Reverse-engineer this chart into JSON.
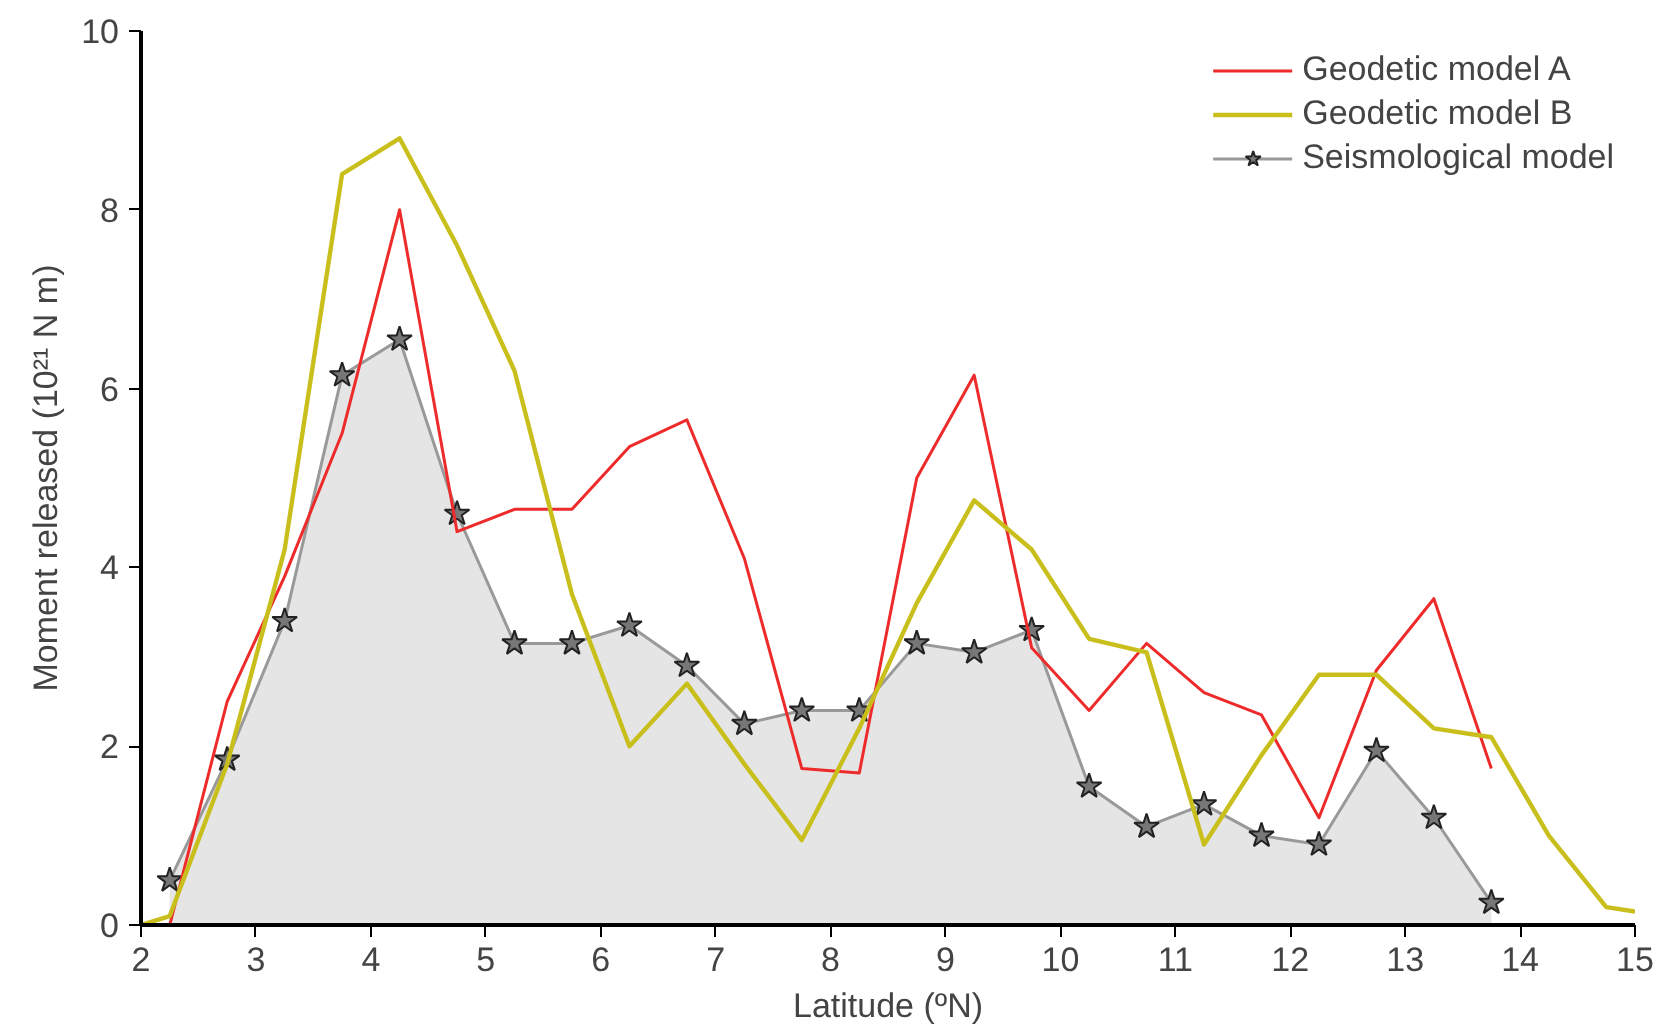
{
  "chart_data": {
    "type": "line",
    "xlabel": "Latitude (ºN)",
    "ylabel": "Moment released (10²¹ N m)",
    "xlim": [
      2,
      15
    ],
    "xticks": [
      2,
      3,
      4,
      5,
      6,
      7,
      8,
      9,
      10,
      11,
      12,
      13,
      14,
      15
    ],
    "ylim": [
      0,
      10
    ],
    "yticks": [
      0,
      2,
      4,
      6,
      8,
      10
    ],
    "grid": false,
    "legend": "top right",
    "series": [
      {
        "name": "Seismological model",
        "type": "area",
        "color": "#999999",
        "marker": "star",
        "x": [
          2.25,
          2.75,
          3.25,
          3.75,
          4.25,
          4.75,
          5.25,
          5.75,
          6.25,
          6.75,
          7.25,
          7.75,
          8.25,
          8.75,
          9.25,
          9.75,
          10.25,
          10.75,
          11.25,
          11.75,
          12.25,
          12.75,
          13.25,
          13.75
        ],
        "values": [
          0.5,
          1.85,
          3.4,
          6.15,
          6.55,
          4.6,
          3.15,
          3.15,
          3.35,
          2.9,
          2.25,
          2.4,
          2.4,
          3.15,
          3.05,
          3.3,
          1.55,
          1.1,
          1.35,
          1.0,
          0.9,
          1.95,
          1.2,
          0.25
        ]
      },
      {
        "name": "Geodetic model A",
        "color": "#ee2b2b",
        "x": [
          2.25,
          2.75,
          3.25,
          3.75,
          4.25,
          4.75,
          5.25,
          5.75,
          6.25,
          6.75,
          7.25,
          7.75,
          8.25,
          8.75,
          9.25,
          9.75,
          10.25,
          10.75,
          11.25,
          11.75,
          12.25,
          12.75,
          13.25,
          13.75
        ],
        "values": [
          0.0,
          2.5,
          3.9,
          5.5,
          8.0,
          4.4,
          4.65,
          4.65,
          5.35,
          5.65,
          4.1,
          1.75,
          1.7,
          5.0,
          6.15,
          3.1,
          2.4,
          3.15,
          2.6,
          2.35,
          1.2,
          2.85,
          3.65,
          1.75
        ]
      },
      {
        "name": "Geodetic model B",
        "color": "#c9bf1c",
        "x": [
          2,
          2.25,
          2.75,
          3.25,
          3.75,
          4.25,
          4.75,
          5.25,
          5.75,
          6.25,
          6.75,
          7.25,
          7.75,
          8.25,
          8.75,
          9.25,
          9.75,
          10.25,
          10.75,
          11.25,
          11.75,
          12.25,
          12.75,
          13.25,
          13.75,
          14.25,
          14.75,
          15
        ],
        "values": [
          0.0,
          0.1,
          1.8,
          4.2,
          8.4,
          8.8,
          7.6,
          6.2,
          3.7,
          2.0,
          2.7,
          1.8,
          0.95,
          2.2,
          3.6,
          4.75,
          4.2,
          3.2,
          3.05,
          0.9,
          1.9,
          2.8,
          2.8,
          2.2,
          2.1,
          1.0,
          0.2,
          0.15
        ]
      }
    ]
  }
}
